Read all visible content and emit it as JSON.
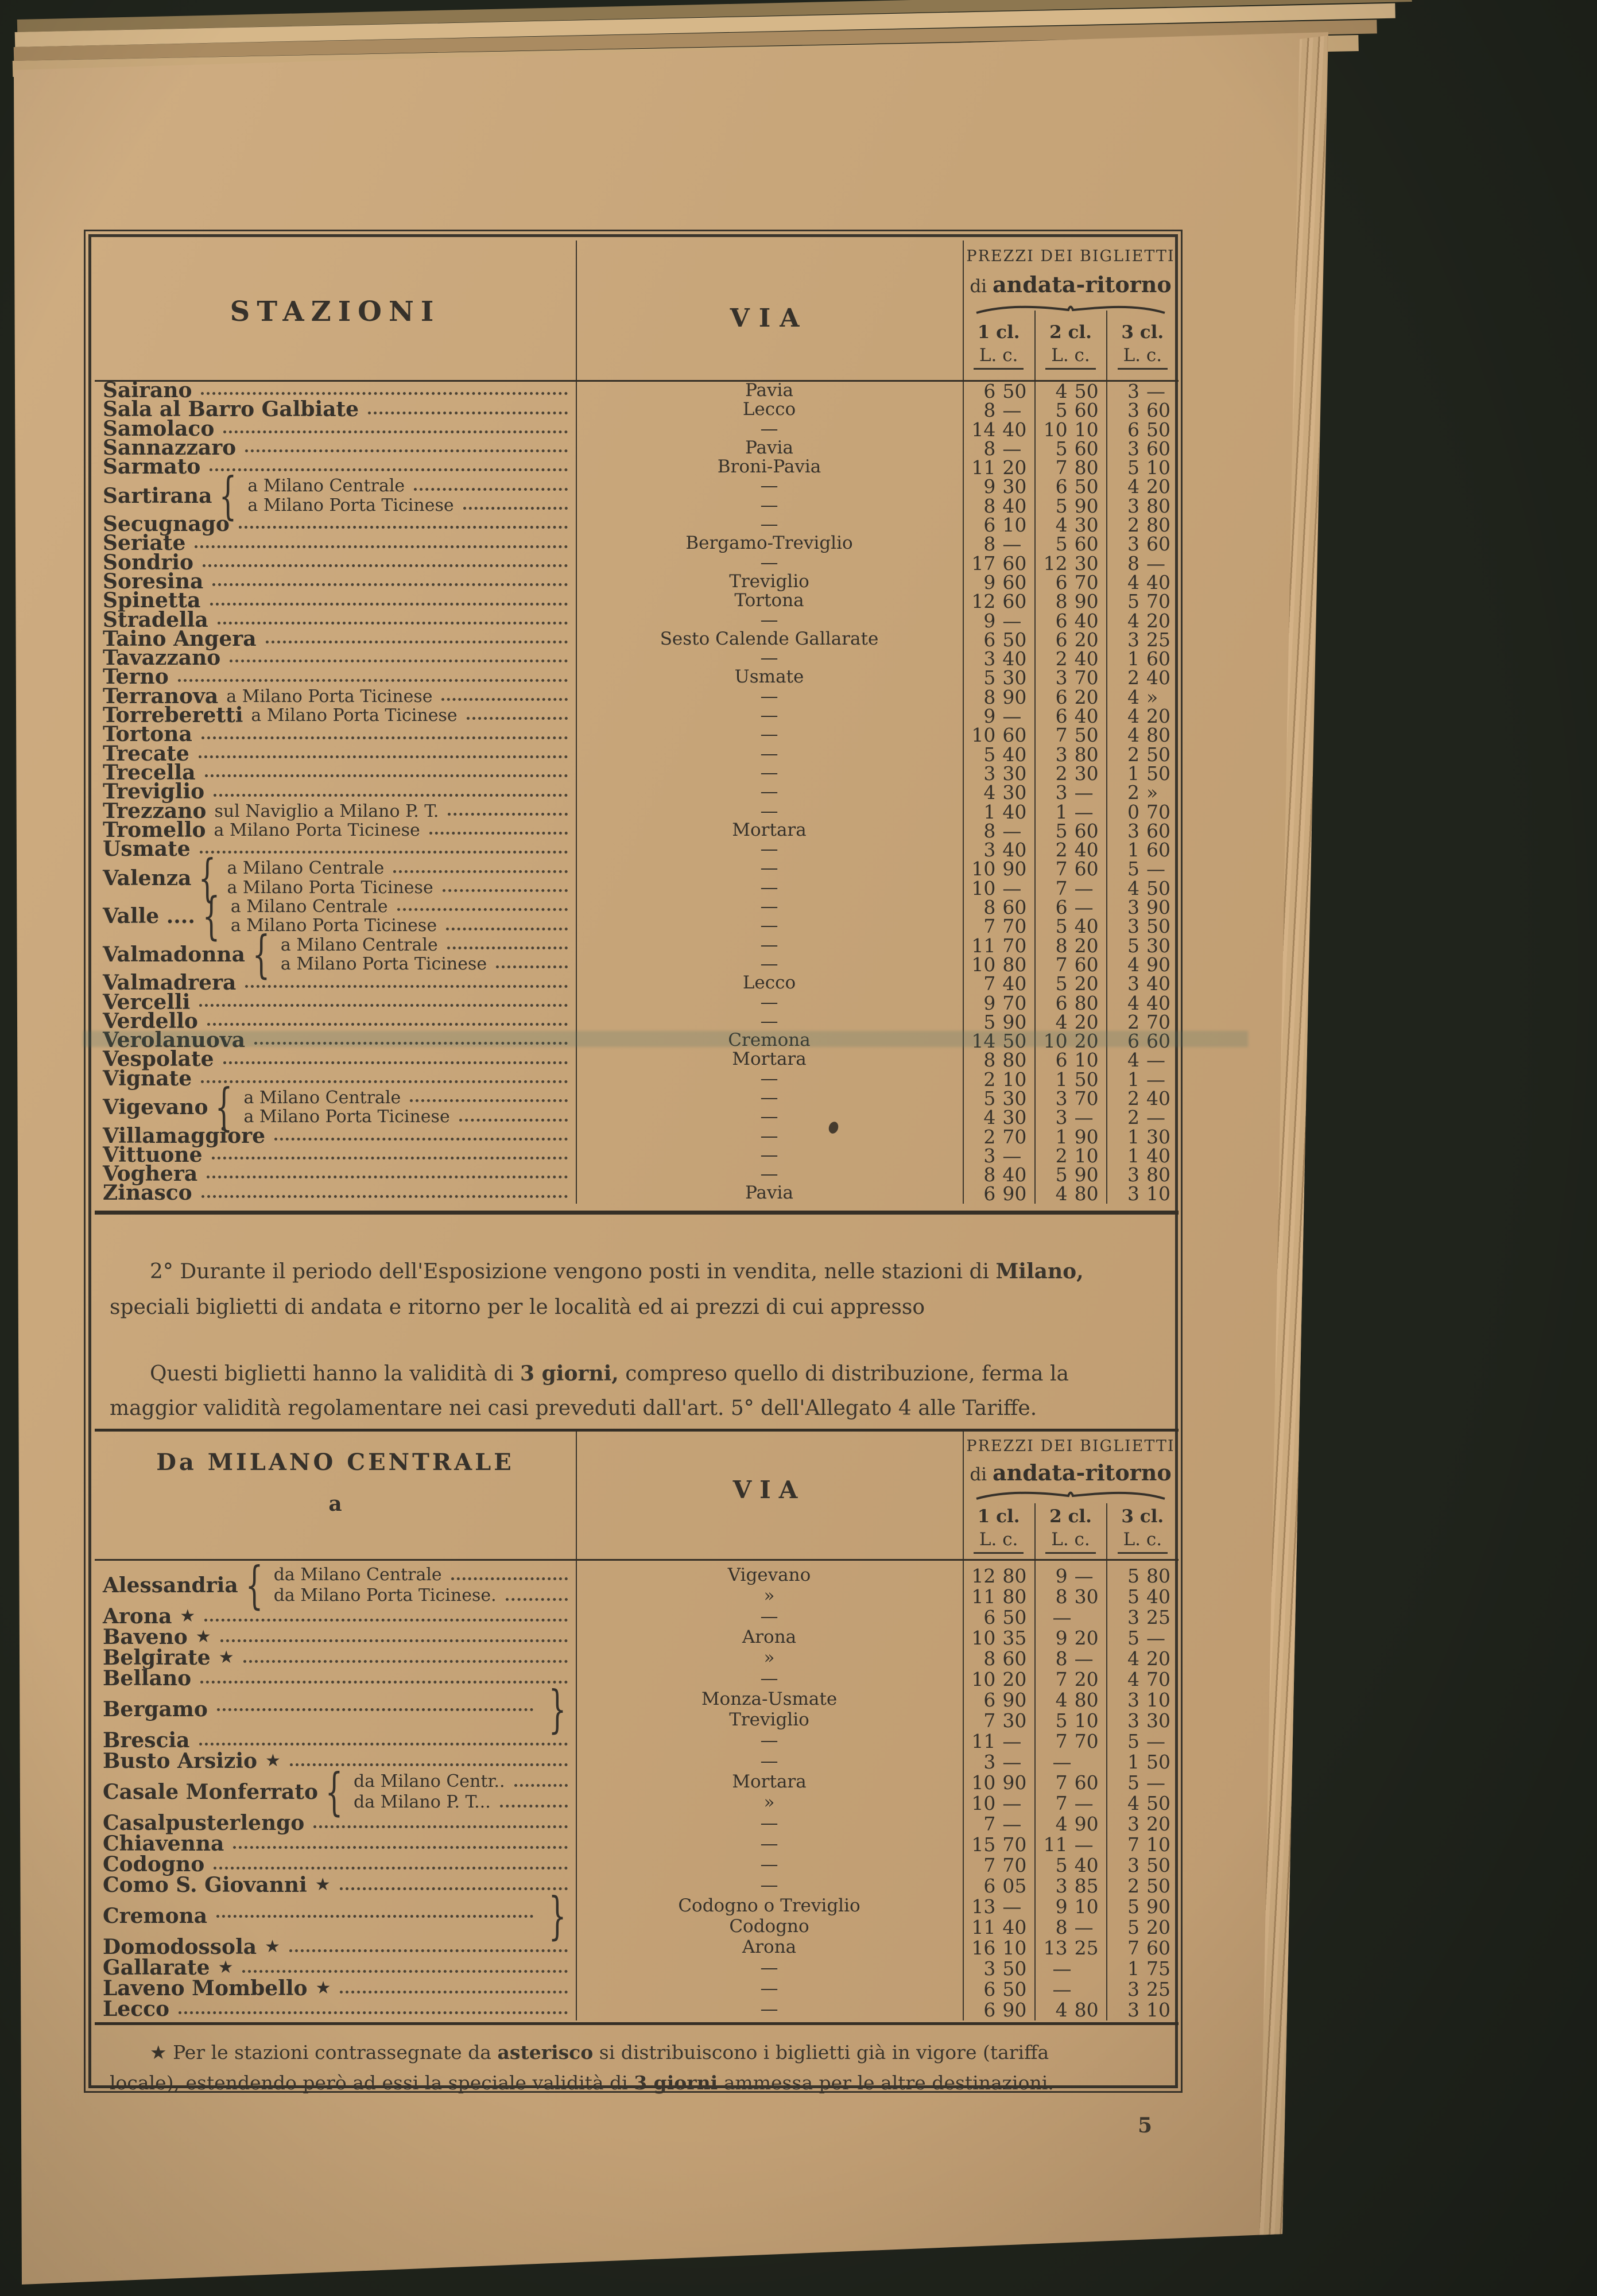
{
  "page": {
    "number": "5"
  },
  "table1": {
    "header": {
      "stations": "STAZIONI",
      "via": "VIA",
      "prices_title": "PREZZI DEI BIGLIETTI",
      "prices_di": "di ",
      "prices_bold": "andata-ritorno",
      "classes": [
        {
          "cl": "1 cl.",
          "lc": "L. c."
        },
        {
          "cl": "2 cl.",
          "lc": "L. c."
        },
        {
          "cl": "3 cl.",
          "lc": "L. c."
        }
      ]
    },
    "rows": [
      {
        "name": "Sairano",
        "via": "Pavia",
        "p": [
          "6 50",
          "4 50",
          "3 —"
        ]
      },
      {
        "name": "Sala al Barro Galbiate",
        "via": "Lecco",
        "p": [
          "8 —",
          "5 60",
          "3 60"
        ]
      },
      {
        "name": "Samolaco",
        "via": "—",
        "p": [
          "14 40",
          "10 10",
          "6 50"
        ]
      },
      {
        "name": "Sannazzaro",
        "via": "Pavia",
        "p": [
          "8 —",
          "5 60",
          "3 60"
        ]
      },
      {
        "name": "Sarmato",
        "via": "Broni-Pavia",
        "p": [
          "11 20",
          "7 80",
          "5 10"
        ]
      },
      {
        "name": "Sartirana",
        "subs": [
          {
            "label": "a Milano Centrale",
            "via": "—",
            "p": [
              "9 30",
              "6 50",
              "4 20"
            ]
          },
          {
            "label": "a Milano Porta Ticinese",
            "via": "—",
            "p": [
              "8 40",
              "5 90",
              "3 80"
            ]
          }
        ]
      },
      {
        "name": "Secugnago",
        "via": "—",
        "p": [
          "6 10",
          "4 30",
          "2 80"
        ]
      },
      {
        "name": "Seriate",
        "via": "Bergamo-Treviglio",
        "p": [
          "8 —",
          "5 60",
          "3 60"
        ]
      },
      {
        "name": "Sondrio",
        "via": "—",
        "p": [
          "17 60",
          "12 30",
          "8 —"
        ]
      },
      {
        "name": "Soresina",
        "via": "Treviglio",
        "p": [
          "9 60",
          "6 70",
          "4 40"
        ]
      },
      {
        "name": "Spinetta",
        "via": "Tortona",
        "p": [
          "12 60",
          "8 90",
          "5 70"
        ]
      },
      {
        "name": "Stradella",
        "via": "—",
        "p": [
          "9 —",
          "6 40",
          "4 20"
        ]
      },
      {
        "name": "Taino Angera",
        "via": "Sesto Calende Gallarate",
        "p": [
          "6 50",
          "6 20",
          "3 25"
        ]
      },
      {
        "name": "Tavazzano",
        "via": "—",
        "p": [
          "3 40",
          "2 40",
          "1 60"
        ]
      },
      {
        "name": "Terno",
        "via": "Usmate",
        "p": [
          "5 30",
          "3 70",
          "2 40"
        ]
      },
      {
        "name": "Terranova",
        "suffix": "a Milano Porta Ticinese",
        "via": "—",
        "p": [
          "8 90",
          "6 20",
          "4 »"
        ]
      },
      {
        "name": "Torreberetti",
        "suffix": "a Milano Porta Ticinese",
        "via": "—",
        "p": [
          "9 —",
          "6 40",
          "4 20"
        ]
      },
      {
        "name": "Tortona",
        "via": "—",
        "p": [
          "10 60",
          "7 50",
          "4 80"
        ]
      },
      {
        "name": "Trecate",
        "via": "—",
        "p": [
          "5 40",
          "3 80",
          "2 50"
        ]
      },
      {
        "name": "Trecella",
        "via": "—",
        "p": [
          "3 30",
          "2 30",
          "1 50"
        ]
      },
      {
        "name": "Treviglio",
        "via": "—",
        "p": [
          "4 30",
          "3 —",
          "2 »"
        ]
      },
      {
        "name": "Trezzano",
        "suffix": "sul Naviglio a Milano P. T.",
        "via": "—",
        "p": [
          "1 40",
          "1 —",
          "0 70"
        ]
      },
      {
        "name": "Tromello",
        "suffix": "a Milano Porta Ticinese",
        "via": "Mortara",
        "p": [
          "8 —",
          "5 60",
          "3 60"
        ]
      },
      {
        "name": "Usmate",
        "via": "—",
        "p": [
          "3 40",
          "2 40",
          "1 60"
        ]
      },
      {
        "name": "Valenza",
        "subs": [
          {
            "label": "a Milano Centrale",
            "via": "—",
            "p": [
              "10 90",
              "7 60",
              "5 —"
            ]
          },
          {
            "label": "a Milano Porta Ticinese",
            "via": "—",
            "p": [
              "10 —",
              "7 —",
              "4 50"
            ]
          }
        ]
      },
      {
        "name": "Valle ....",
        "subs": [
          {
            "label": "a Milano Centrale",
            "via": "—",
            "p": [
              "8 60",
              "6 —",
              "3 90"
            ]
          },
          {
            "label": "a Milano Porta Ticinese",
            "via": "—",
            "p": [
              "7 70",
              "5 40",
              "3 50"
            ]
          }
        ]
      },
      {
        "name": "Valmadonna",
        "subs": [
          {
            "label": "a Milano Centrale",
            "via": "—",
            "p": [
              "11 70",
              "8 20",
              "5 30"
            ]
          },
          {
            "label": "a Milano Porta Ticinese",
            "via": "—",
            "p": [
              "10 80",
              "7 60",
              "4 90"
            ]
          }
        ]
      },
      {
        "name": "Valmadrera",
        "via": "Lecco",
        "p": [
          "7 40",
          "5 20",
          "3 40"
        ]
      },
      {
        "name": "Vercelli",
        "via": "—",
        "p": [
          "9 70",
          "6 80",
          "4 40"
        ]
      },
      {
        "name": "Verdello",
        "via": "—",
        "p": [
          "5 90",
          "4 20",
          "2 70"
        ]
      },
      {
        "name": "Verolanuova",
        "via": "Cremona",
        "p": [
          "14 50",
          "10 20",
          "6 60"
        ]
      },
      {
        "name": "Vespolate",
        "via": "Mortara",
        "p": [
          "8 80",
          "6 10",
          "4 —"
        ]
      },
      {
        "name": "Vignate",
        "via": "—",
        "p": [
          "2 10",
          "1 50",
          "1 —"
        ]
      },
      {
        "name": "Vigevano",
        "subs": [
          {
            "label": "a Milano Centrale",
            "via": "—",
            "p": [
              "5 30",
              "3 70",
              "2 40"
            ]
          },
          {
            "label": "a Milano Porta Ticinese",
            "via": "—",
            "p": [
              "4 30",
              "3 —",
              "2 —"
            ]
          }
        ]
      },
      {
        "name": "Villamaggiore",
        "via": "—",
        "p": [
          "2 70",
          "1 90",
          "1 30"
        ]
      },
      {
        "name": "Vittuone",
        "via": "—",
        "p": [
          "3 —",
          "2 10",
          "1 40"
        ]
      },
      {
        "name": "Voghera",
        "via": "—",
        "p": [
          "8 40",
          "5 90",
          "3 80"
        ]
      },
      {
        "name": "Zinasco",
        "via": "Pavia",
        "p": [
          "6 90",
          "4 80",
          "3 10"
        ]
      }
    ]
  },
  "paragraphs": [
    {
      "lines": [
        [
          {
            "t": "2° Durante il periodo dell'Esposizione vengono posti in vendita, nelle stazioni di "
          },
          {
            "t": "Milano,",
            "b": true
          }
        ],
        [
          {
            "t": "speciali biglietti di andata e ritorno per le località ed ai prezzi di cui appresso"
          }
        ]
      ]
    },
    {
      "lines": [
        [
          {
            "t": "Questi biglietti hanno la validità di "
          },
          {
            "t": "3 giorni,",
            "b": true
          },
          {
            "t": " compreso quello di distribuzione, ferma la"
          }
        ],
        [
          {
            "t": "maggior validità regolamentare nei casi preveduti dall'art. 5° dell'Allegato 4 alle Tariffe."
          }
        ]
      ]
    }
  ],
  "table2": {
    "header": {
      "from": "Da MILANO CENTRALE",
      "a": "a",
      "via": "VIA",
      "prices_title": "PREZZI DEI BIGLIETTI",
      "prices_di": "di ",
      "prices_bold": "andata-ritorno",
      "classes": [
        {
          "cl": "1 cl.",
          "lc": "L. c."
        },
        {
          "cl": "2 cl.",
          "lc": "L. c."
        },
        {
          "cl": "3 cl.",
          "lc": "L. c."
        }
      ]
    },
    "rows": [
      {
        "name": "Alessandria",
        "subs": [
          {
            "label": "da Milano Centrale",
            "via": "Vigevano",
            "p": [
              "12 80",
              "9 —",
              "5 80"
            ]
          },
          {
            "label": "da Milano Porta Ticinese.",
            "via": "»",
            "p": [
              "11 80",
              "8 30",
              "5 40"
            ]
          }
        ]
      },
      {
        "name": "Arona",
        "suffix": "★",
        "via": "—",
        "p": [
          "6 50",
          "—",
          "3 25"
        ]
      },
      {
        "name": "Baveno",
        "suffix": "★",
        "via": "Arona",
        "p": [
          "10 35",
          "9 20",
          "5 —"
        ]
      },
      {
        "name": "Belgirate",
        "suffix": "★",
        "via": "»",
        "p": [
          "8 60",
          "8 —",
          "4 20"
        ]
      },
      {
        "name": "Bellano",
        "via": "—",
        "p": [
          "10 20",
          "7 20",
          "4 70"
        ]
      },
      {
        "name": "Bergamo",
        "right": true,
        "subs": [
          {
            "via": "Monza-Usmate",
            "p": [
              "6 90",
              "4 80",
              "3 10"
            ]
          },
          {
            "via": "Treviglio",
            "p": [
              "7 30",
              "5 10",
              "3 30"
            ]
          }
        ]
      },
      {
        "name": "Brescia",
        "via": "—",
        "p": [
          "11 —",
          "7 70",
          "5 —"
        ]
      },
      {
        "name": "Busto Arsizio",
        "suffix": "★",
        "via": "—",
        "p": [
          "3 —",
          "—",
          "1 50"
        ]
      },
      {
        "name": "Casale Monferrato",
        "subs": [
          {
            "label": "da Milano Centr..",
            "via": "Mortara",
            "p": [
              "10 90",
              "7 60",
              "5 —"
            ]
          },
          {
            "label": "da Milano P. T...",
            "via": "»",
            "p": [
              "10 —",
              "7 —",
              "4 50"
            ]
          }
        ]
      },
      {
        "name": "Casalpusterlengo",
        "via": "—",
        "p": [
          "7 —",
          "4 90",
          "3 20"
        ]
      },
      {
        "name": "Chiavenna",
        "via": "—",
        "p": [
          "15 70",
          "11 —",
          "7 10"
        ]
      },
      {
        "name": "Codogno",
        "via": "—",
        "p": [
          "7 70",
          "5 40",
          "3 50"
        ]
      },
      {
        "name": "Como S. Giovanni",
        "suffix": "★",
        "via": "—",
        "p": [
          "6 05",
          "3 85",
          "2 50"
        ]
      },
      {
        "name": "Cremona",
        "right": true,
        "subs": [
          {
            "via": "Codogno o Treviglio",
            "p": [
              "13 —",
              "9 10",
              "5 90"
            ]
          },
          {
            "via": "Codogno",
            "p": [
              "11 40",
              "8 —",
              "5 20"
            ]
          }
        ]
      },
      {
        "name": "Domodossola",
        "suffix": "★",
        "via": "Arona",
        "p": [
          "16 10",
          "13 25",
          "7 60"
        ]
      },
      {
        "name": "Gallarate",
        "suffix": "★",
        "via": "—",
        "p": [
          "3 50",
          "—",
          "1 75"
        ]
      },
      {
        "name": "Laveno Mombello",
        "suffix": "★",
        "via": "—",
        "p": [
          "6 50",
          "—",
          "3 25"
        ]
      },
      {
        "name": "Lecco",
        "via": "—",
        "p": [
          "6 90",
          "4 80",
          "3 10"
        ]
      }
    ]
  },
  "footnote": {
    "lines": [
      [
        {
          "t": "★ Per le stazioni contrassegnate da "
        },
        {
          "t": "asterisco",
          "b": true
        },
        {
          "t": " si distribuiscono i biglietti già in vigore (tariffa"
        }
      ],
      [
        {
          "t": "locale), estendendo però ad essi la speciale validità di "
        },
        {
          "t": "3 giorni",
          "b": true
        },
        {
          "t": " ammessa per le altre destinazioni."
        }
      ]
    ]
  }
}
